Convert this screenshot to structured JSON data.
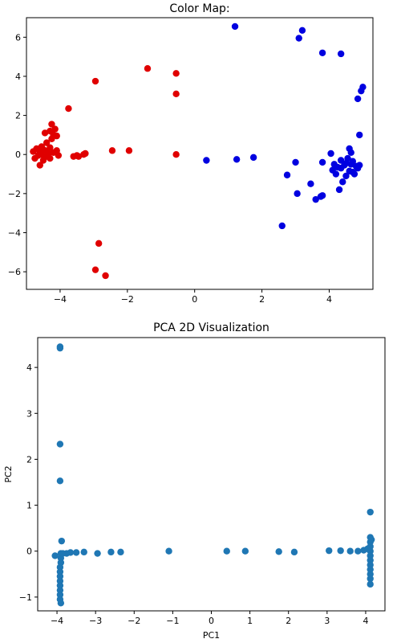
{
  "chart_data": [
    {
      "type": "scatter",
      "title": "Color Map:",
      "xlabel": "",
      "ylabel": "",
      "xlim": [
        -5.0,
        5.3
      ],
      "ylim": [
        -6.9,
        7.0
      ],
      "xticks": [
        -4,
        -2,
        0,
        2,
        4
      ],
      "yticks": [
        -6,
        -4,
        -2,
        0,
        2,
        4,
        6
      ],
      "grid": false,
      "legend": "none",
      "series": [
        {
          "color": "#e00000",
          "points": [
            [
              -4.8,
              0.15
            ],
            [
              -4.75,
              -0.2
            ],
            [
              -4.7,
              0.3
            ],
            [
              -4.65,
              -0.05
            ],
            [
              -4.6,
              0.1
            ],
            [
              -4.6,
              -0.55
            ],
            [
              -4.55,
              0.4
            ],
            [
              -4.55,
              0.0
            ],
            [
              -4.5,
              -0.3
            ],
            [
              -4.5,
              0.25
            ],
            [
              -4.45,
              1.1
            ],
            [
              -4.45,
              0.2
            ],
            [
              -4.4,
              0.6
            ],
            [
              -4.4,
              -0.1
            ],
            [
              -4.35,
              0.05
            ],
            [
              -4.3,
              1.2
            ],
            [
              -4.3,
              0.35
            ],
            [
              -4.3,
              -0.2
            ],
            [
              -4.25,
              1.55
            ],
            [
              -4.25,
              0.8
            ],
            [
              -4.2,
              0.1
            ],
            [
              -4.2,
              1.0
            ],
            [
              -4.15,
              1.3
            ],
            [
              -4.1,
              0.95
            ],
            [
              -4.1,
              0.2
            ],
            [
              -4.05,
              -0.05
            ],
            [
              -3.75,
              2.35
            ],
            [
              -3.6,
              -0.1
            ],
            [
              -3.5,
              -0.05
            ],
            [
              -3.45,
              -0.1
            ],
            [
              -3.3,
              0.0
            ],
            [
              -3.25,
              0.05
            ],
            [
              -2.95,
              3.75
            ],
            [
              -2.85,
              -4.55
            ],
            [
              -2.95,
              -5.9
            ],
            [
              -2.65,
              -6.2
            ],
            [
              -2.45,
              0.2
            ],
            [
              -1.95,
              0.2
            ],
            [
              -1.4,
              4.4
            ],
            [
              -0.55,
              4.15
            ],
            [
              -0.55,
              3.1
            ],
            [
              -0.55,
              0.0
            ]
          ]
        },
        {
          "color": "#0000e0",
          "points": [
            [
              0.35,
              -0.3
            ],
            [
              1.2,
              6.55
            ],
            [
              1.25,
              -0.25
            ],
            [
              1.75,
              -0.15
            ],
            [
              2.6,
              -3.65
            ],
            [
              2.75,
              -1.05
            ],
            [
              3.0,
              -0.4
            ],
            [
              3.05,
              -2.0
            ],
            [
              3.1,
              5.95
            ],
            [
              3.2,
              6.35
            ],
            [
              3.45,
              -1.5
            ],
            [
              3.6,
              -2.3
            ],
            [
              3.75,
              -2.15
            ],
            [
              3.8,
              5.2
            ],
            [
              3.8,
              -2.1
            ],
            [
              3.8,
              -0.4
            ],
            [
              4.05,
              0.05
            ],
            [
              4.1,
              -0.8
            ],
            [
              4.15,
              -0.5
            ],
            [
              4.2,
              -1.0
            ],
            [
              4.25,
              -0.65
            ],
            [
              4.3,
              -1.8
            ],
            [
              4.35,
              -0.3
            ],
            [
              4.35,
              5.15
            ],
            [
              4.35,
              -0.7
            ],
            [
              4.4,
              -1.4
            ],
            [
              4.45,
              -0.55
            ],
            [
              4.5,
              -1.1
            ],
            [
              4.5,
              -0.45
            ],
            [
              4.55,
              -0.2
            ],
            [
              4.6,
              -0.85
            ],
            [
              4.6,
              0.3
            ],
            [
              4.65,
              -0.5
            ],
            [
              4.65,
              0.1
            ],
            [
              4.7,
              -0.9
            ],
            [
              4.7,
              -0.35
            ],
            [
              4.75,
              -1.0
            ],
            [
              4.8,
              -0.6
            ],
            [
              4.85,
              -0.7
            ],
            [
              4.85,
              2.85
            ],
            [
              4.9,
              1.0
            ],
            [
              4.9,
              -0.55
            ],
            [
              4.95,
              3.25
            ],
            [
              5.0,
              3.45
            ]
          ]
        }
      ]
    },
    {
      "type": "scatter",
      "title": "PCA 2D Visualization",
      "xlabel": "PC1",
      "ylabel": "PC2",
      "xlim": [
        -4.5,
        4.5
      ],
      "ylim": [
        -1.3,
        4.65
      ],
      "xticks": [
        -4,
        -3,
        -2,
        -1,
        0,
        1,
        2,
        3,
        4
      ],
      "yticks": [
        -1,
        0,
        1,
        2,
        3,
        4
      ],
      "grid": false,
      "legend": "none",
      "series": [
        {
          "color": "#1f77b4",
          "points": [
            [
              -3.92,
              4.45
            ],
            [
              -3.92,
              4.42
            ],
            [
              -3.92,
              2.33
            ],
            [
              -3.92,
              1.53
            ],
            [
              -3.88,
              0.22
            ],
            [
              -4.05,
              -0.1
            ],
            [
              -3.9,
              -0.05
            ],
            [
              -3.9,
              -0.15
            ],
            [
              -3.9,
              -0.25
            ],
            [
              -3.92,
              -0.35
            ],
            [
              -3.92,
              -0.45
            ],
            [
              -3.92,
              -0.55
            ],
            [
              -3.92,
              -0.65
            ],
            [
              -3.92,
              -0.75
            ],
            [
              -3.92,
              -0.85
            ],
            [
              -3.92,
              -0.95
            ],
            [
              -3.92,
              -1.05
            ],
            [
              -3.9,
              -1.13
            ],
            [
              -3.85,
              -0.05
            ],
            [
              -3.75,
              -0.05
            ],
            [
              -3.65,
              -0.03
            ],
            [
              -3.5,
              -0.03
            ],
            [
              -3.3,
              -0.02
            ],
            [
              -2.95,
              -0.05
            ],
            [
              -2.6,
              -0.02
            ],
            [
              -2.35,
              -0.02
            ],
            [
              -1.1,
              0.0
            ],
            [
              0.4,
              0.0
            ],
            [
              0.88,
              0.0
            ],
            [
              1.75,
              -0.01
            ],
            [
              2.15,
              -0.02
            ],
            [
              3.05,
              0.01
            ],
            [
              3.35,
              0.01
            ],
            [
              3.6,
              0.0
            ],
            [
              3.8,
              0.0
            ],
            [
              3.95,
              0.02
            ],
            [
              4.05,
              0.05
            ],
            [
              4.12,
              0.2
            ],
            [
              4.12,
              0.3
            ],
            [
              4.12,
              0.1
            ],
            [
              4.12,
              0.0
            ],
            [
              4.12,
              -0.1
            ],
            [
              4.12,
              -0.2
            ],
            [
              4.12,
              -0.3
            ],
            [
              4.12,
              -0.4
            ],
            [
              4.12,
              -0.5
            ],
            [
              4.12,
              -0.6
            ],
            [
              4.12,
              -0.72
            ],
            [
              4.12,
              0.85
            ],
            [
              4.15,
              0.25
            ]
          ]
        }
      ]
    }
  ]
}
